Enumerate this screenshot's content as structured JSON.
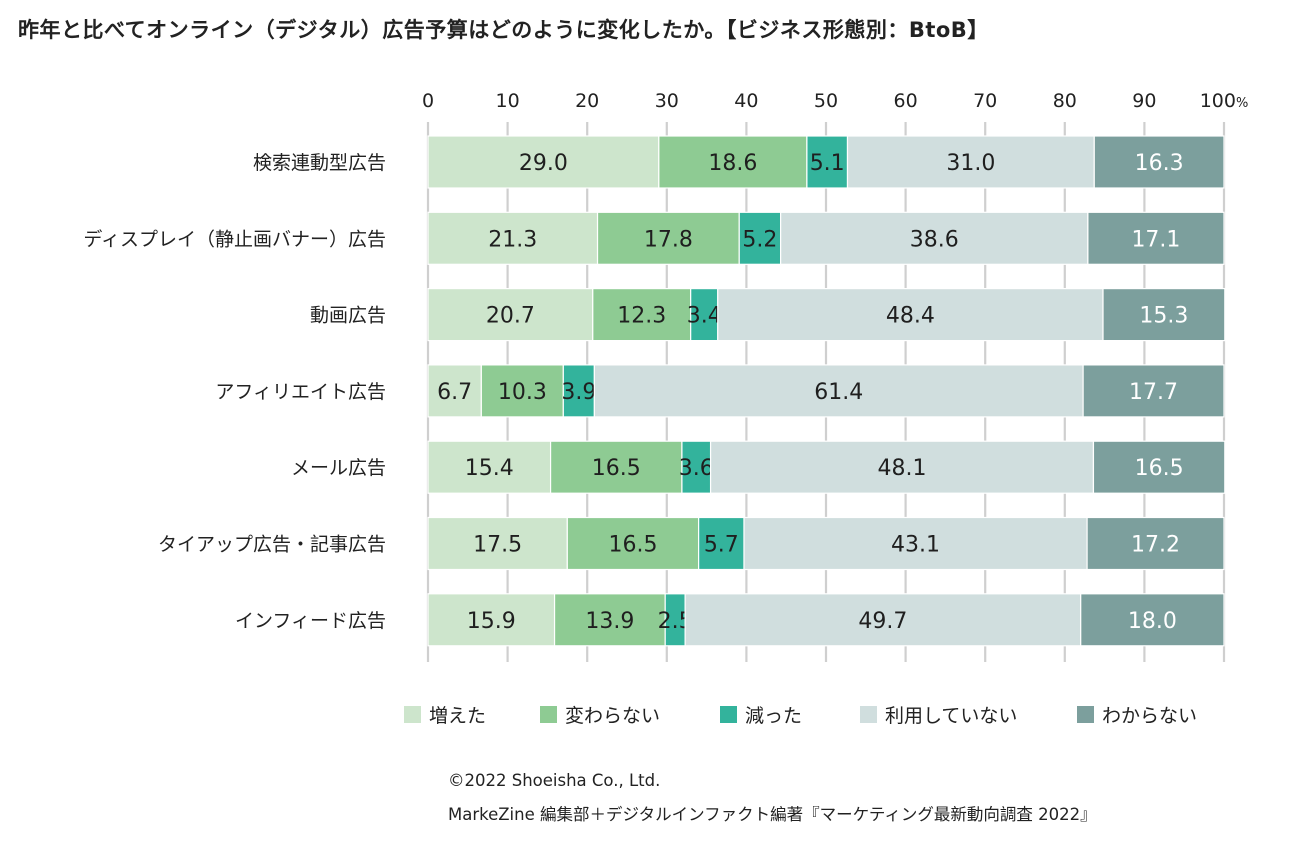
{
  "chart_data": {
    "type": "bar",
    "orientation": "horizontal",
    "stacked": true,
    "title": "昨年と比べてオンライン（デジタル）広告予算はどのように変化したか。【ビジネス形態別：BtoB】",
    "categories": [
      "検索連動型広告",
      "ディスプレイ（静止画バナー）広告",
      "動画広告",
      "アフィリエイト広告",
      "メール広告",
      "タイアップ広告・記事広告",
      "インフィード広告"
    ],
    "series": [
      {
        "name": "増えた",
        "color": "#cde5cc",
        "values": [
          29.0,
          21.3,
          20.7,
          6.7,
          15.4,
          17.5,
          15.9
        ]
      },
      {
        "name": "変わらない",
        "color": "#8ecb93",
        "values": [
          18.6,
          17.8,
          12.3,
          10.3,
          16.5,
          16.5,
          13.9
        ]
      },
      {
        "name": "減った",
        "color": "#33b39c",
        "values": [
          5.1,
          5.2,
          3.4,
          3.9,
          3.6,
          5.7,
          2.5
        ]
      },
      {
        "name": "利用していない",
        "color": "#d0dede",
        "values": [
          31.0,
          38.6,
          48.4,
          61.4,
          48.1,
          43.1,
          49.7
        ]
      },
      {
        "name": "わからない",
        "color": "#7c9f9d",
        "values": [
          16.3,
          17.1,
          15.3,
          17.7,
          16.5,
          17.2,
          18.0
        ]
      }
    ],
    "xlim": [
      0,
      100
    ],
    "xticks": [
      "0",
      "10",
      "20",
      "30",
      "40",
      "50",
      "60",
      "70",
      "80",
      "90",
      "100"
    ],
    "unit": "%",
    "grid": true,
    "legend": "bottom"
  },
  "credits": {
    "copyright": "©2022 Shoeisha Co., Ltd.",
    "source": "MarkeZine 編集部＋デジタルインファクト編著『マーケティング最新動向調査 2022』"
  }
}
